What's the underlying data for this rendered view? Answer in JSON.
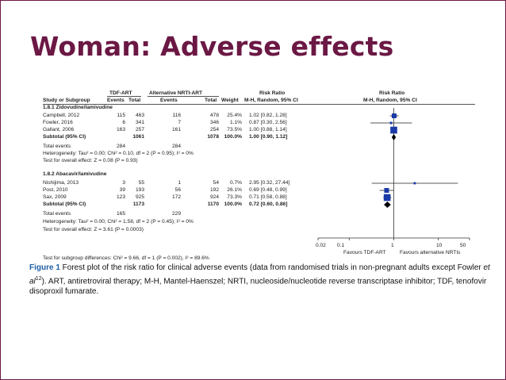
{
  "slide": {
    "title": "Woman: Adverse effects"
  },
  "table": {
    "headers": {
      "group1": "TDF-ART",
      "group2": "Alternative NRTI-ART",
      "risk_ratio": "Risk Ratio",
      "risk_ratio_plot": "Risk Ratio",
      "study": "Study or Subgroup",
      "events1": "Events",
      "total1": "Total",
      "events2": "Events",
      "total2": "Total",
      "weight": "Weight",
      "method": "M-H, Random, 95% CI",
      "method_plot": "M-H, Random, 95% CI"
    },
    "subgroups": [
      {
        "title": "1.8.1 Zidovudine/lamivudine",
        "studies": [
          {
            "name": "Campbell, 2012",
            "e1": "115",
            "t1": "463",
            "e2": "116",
            "t2": "478",
            "w": "25.4%",
            "ci": "1.02 [0.82, 1.28]"
          },
          {
            "name": "Fowler, 2016",
            "e1": "6",
            "t1": "341",
            "e2": "7",
            "t2": "346",
            "w": "1.1%",
            "ci": "0.87 [0.30, 2.56]"
          },
          {
            "name": "Gallant, 2006",
            "e1": "163",
            "t1": "257",
            "e2": "161",
            "t2": "254",
            "w": "73.5%",
            "ci": "1.00 [0.88, 1.14]"
          }
        ],
        "subtotal": {
          "label": "Subtotal (95% CI)",
          "t1": "1061",
          "t2": "1078",
          "w": "100.0%",
          "ci": "1.00 [0.90, 1.12]"
        },
        "total_events": {
          "label": "Total events",
          "e1": "284",
          "e2": "284"
        },
        "heterogeneity": "Heterogeneity: Tau² = 0.00; Chi² = 0.10, df = 2 (P = 0.95); I² = 0%",
        "overall": "Test for overall effect: Z = 0.08 (P = 0.93)"
      },
      {
        "title": "1.8.2 Abacavir/lamivudine",
        "studies": [
          {
            "name": "Nishijima, 2013",
            "e1": "3",
            "t1": "55",
            "e2": "1",
            "t2": "54",
            "w": "0.7%",
            "ci": "2.95 [0.32, 27.44]"
          },
          {
            "name": "Post, 2010",
            "e1": "39",
            "t1": "193",
            "e2": "56",
            "t2": "192",
            "w": "26.1%",
            "ci": "0.69 [0.48, 0.99]"
          },
          {
            "name": "Sax, 2009",
            "e1": "123",
            "t1": "925",
            "e2": "172",
            "t2": "924",
            "w": "73.3%",
            "ci": "0.71 [0.58, 0.88]"
          }
        ],
        "subtotal": {
          "label": "Subtotal (95% CI)",
          "t1": "1173",
          "t2": "1170",
          "w": "100.0%",
          "ci": "0.72 [0.60, 0.86]"
        },
        "total_events": {
          "label": "Total events",
          "e1": "165",
          "e2": "229"
        },
        "heterogeneity": "Heterogeneity: Tau² = 0.00; Chi² = 1.58, df = 2 (P = 0.45); I² = 0%",
        "overall": "Test for overall effect: Z = 3.61 (P = 0.0003)"
      }
    ],
    "subgroup_differences": "Test for subgroup differences: Chi² = 9.66, df = 1 (P = 0.002), I² = 89.6%"
  },
  "forest": {
    "axis_ticks": [
      "0.02",
      "0.1",
      "1",
      "10",
      "50"
    ],
    "favours_left": "Favours TDF-ART",
    "favours_right": "Favours alternative NRTIs"
  },
  "chart_data": {
    "type": "forest",
    "scale": "log",
    "xlim": [
      0.02,
      50
    ],
    "null_value": 1,
    "studies": [
      {
        "name": "Campbell, 2012",
        "rr": 1.02,
        "lo": 0.82,
        "hi": 1.28,
        "weight": 25.4
      },
      {
        "name": "Fowler, 2016",
        "rr": 0.87,
        "lo": 0.3,
        "hi": 2.56,
        "weight": 1.1
      },
      {
        "name": "Gallant, 2006",
        "rr": 1.0,
        "lo": 0.88,
        "hi": 1.14,
        "weight": 73.5
      },
      {
        "name": "Subtotal (95% CI)",
        "rr": 1.0,
        "lo": 0.9,
        "hi": 1.12,
        "summary": true
      },
      {
        "name": "Nishijima, 2013",
        "rr": 2.95,
        "lo": 0.32,
        "hi": 27.44,
        "weight": 0.7
      },
      {
        "name": "Post, 2010",
        "rr": 0.69,
        "lo": 0.48,
        "hi": 0.99,
        "weight": 26.1
      },
      {
        "name": "Sax, 2009",
        "rr": 0.71,
        "lo": 0.58,
        "hi": 0.88,
        "weight": 73.3
      },
      {
        "name": "Subtotal (95% CI)",
        "rr": 0.72,
        "lo": 0.6,
        "hi": 0.86,
        "summary": true
      }
    ],
    "colors": {
      "marker": "#1a3aa8",
      "summary": "#000000"
    }
  },
  "caption": {
    "label": "Figure 1",
    "text1": "  Forest plot of the risk ratio for clinical adverse events (data from randomised trials in non-pregnant adults except Fowler ",
    "etal": "et al",
    "sup": "12",
    "text2": "). ART, antiretroviral therapy; M-H, Mantel-Haenszel; NRTI, nucleoside/nucleotide reverse transcriptase inhibitor; TDF, tenofovir disoproxil fumarate."
  }
}
